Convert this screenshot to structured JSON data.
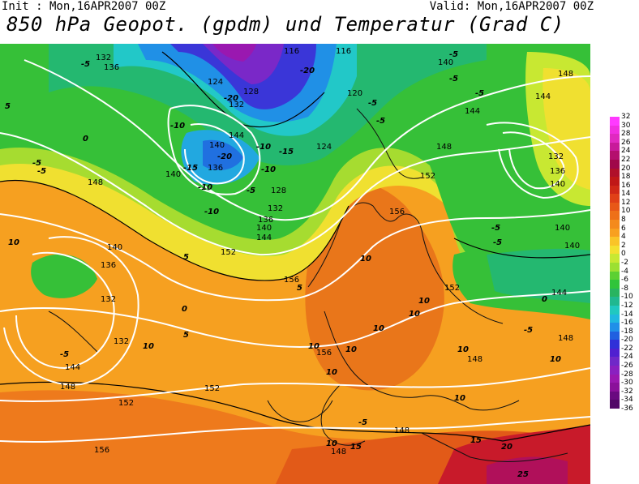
{
  "header": {
    "init": "Init : Mon,16APR2007 00Z",
    "valid": "Valid: Mon,16APR2007 00Z",
    "title": "850 hPa Geopot. (gpdm) und Temperatur (Grad C)"
  },
  "geopotential_labels": [
    "132",
    "136",
    "116",
    "116",
    "140",
    "148",
    "124",
    "128",
    "132",
    "120",
    "144",
    "140",
    "136",
    "140",
    "128",
    "124",
    "144",
    "136",
    "132",
    "152",
    "148",
    "140",
    "132",
    "136",
    "148",
    "144",
    "140",
    "156",
    "152",
    "156",
    "140",
    "132",
    "144",
    "148",
    "152",
    "156",
    "152",
    "156",
    "148",
    "152",
    "148",
    "148",
    "148",
    "132",
    "136",
    "140",
    "144",
    "140",
    "144"
  ],
  "temperature_labels": [
    "-5",
    "-5",
    "-20",
    "-20",
    "-5",
    "-10",
    "-5",
    "-10",
    "-15",
    "-20",
    "-10",
    "-15",
    "-10",
    "-10",
    "-5",
    "-5",
    "-5",
    "0",
    "-5",
    "-5",
    "0",
    "-5",
    "10",
    "5",
    "10",
    "10",
    "5",
    "-5",
    "10",
    "10",
    "10",
    "10",
    "10",
    "10",
    "10",
    "10",
    "-5",
    "15",
    "20",
    "25",
    "0",
    "-5",
    "10",
    "5",
    "15",
    "-5",
    "10",
    "5"
  ],
  "legend": {
    "values": [
      "32",
      "30",
      "28",
      "26",
      "24",
      "22",
      "20",
      "18",
      "16",
      "14",
      "12",
      "10",
      "8",
      "6",
      "4",
      "2",
      "0",
      "-2",
      "-4",
      "-6",
      "-8",
      "-10",
      "-12",
      "-14",
      "-16",
      "-18",
      "-20",
      "-22",
      "-24",
      "-26",
      "-28",
      "-30",
      "-32",
      "-34",
      "-36"
    ],
    "colors": [
      "#ff3aff",
      "#f030e0",
      "#e02ac0",
      "#c81a9a",
      "#b4106e",
      "#a0084a",
      "#b0102a",
      "#c01818",
      "#d02818",
      "#e04018",
      "#e85818",
      "#ee7018",
      "#f48a1c",
      "#f8a020",
      "#fac428",
      "#f4e030",
      "#c8e832",
      "#9ce032",
      "#5cd032",
      "#30c43a",
      "#28b460",
      "#20b890",
      "#20c8c0",
      "#20b8e0",
      "#2090e8",
      "#2060e0",
      "#3030d8",
      "#5020d0",
      "#7028c8",
      "#8a20c0",
      "#9a18b0",
      "#8a109a",
      "#6a0a80",
      "#520868"
    ]
  }
}
